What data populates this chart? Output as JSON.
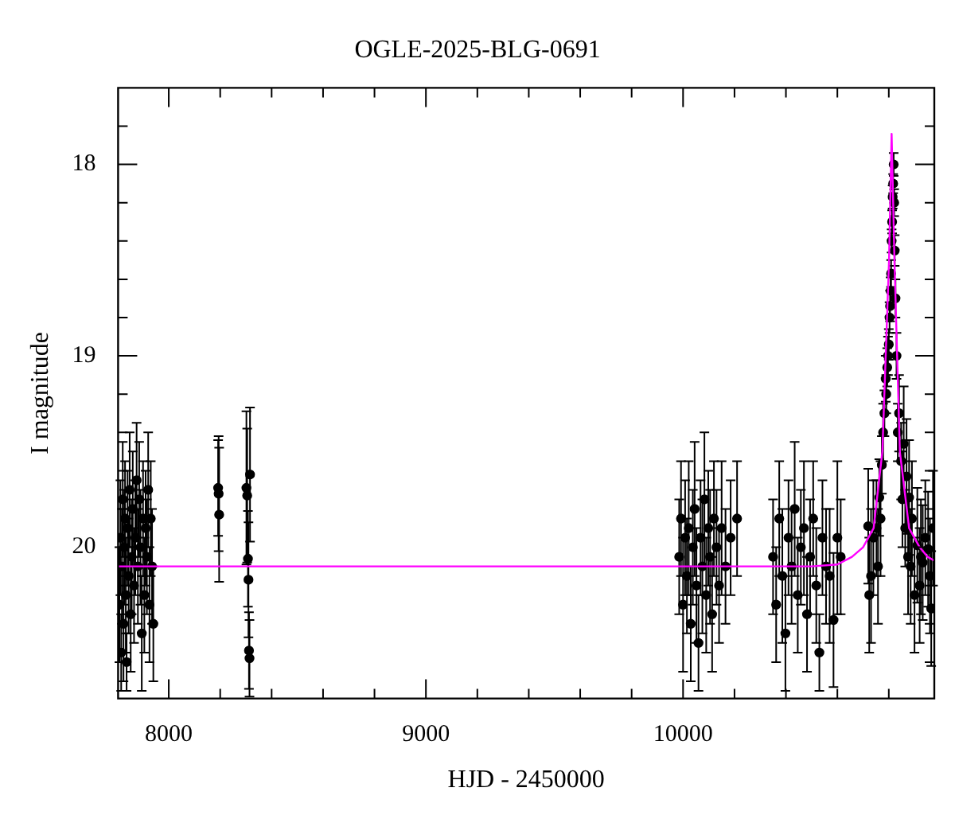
{
  "chart_data": {
    "type": "scatter",
    "title": "OGLE-2025-BLG-0691",
    "xlabel": "HJD - 2450000",
    "ylabel": "I magnitude",
    "xlim": [
      7803,
      10977
    ],
    "ylim": [
      20.79,
      17.6
    ],
    "xticks": [
      8000,
      {
        "value": 8200,
        "label": null
      },
      {
        "value": 8400,
        "label": null
      },
      {
        "value": 8600,
        "label": null
      },
      {
        "value": 8800,
        "label": null
      },
      9000,
      {
        "value": 9200,
        "label": null
      },
      {
        "value": 9400,
        "label": null
      },
      {
        "value": 9600,
        "label": null
      },
      {
        "value": 9800,
        "label": null
      },
      10000,
      {
        "value": 10200,
        "label": null
      },
      {
        "value": 10400,
        "label": null
      },
      {
        "value": 10600,
        "label": null
      },
      {
        "value": 10800,
        "label": null
      }
    ],
    "yticks": [
      {
        "value": 17.8,
        "label": null
      },
      18,
      {
        "value": 18.2,
        "label": null
      },
      {
        "value": 18.4,
        "label": null
      },
      {
        "value": 18.6,
        "label": null
      },
      {
        "value": 18.8,
        "label": null
      },
      19,
      {
        "value": 19.2,
        "label": null
      },
      {
        "value": 19.4,
        "label": null
      },
      {
        "value": 19.6,
        "label": null
      },
      {
        "value": 19.8,
        "label": null
      },
      20,
      {
        "value": 20.2,
        "label": null
      },
      {
        "value": 20.4,
        "label": null
      },
      {
        "value": 20.6,
        "label": null
      }
    ],
    "series": [
      {
        "color": "#000000",
        "marker": "circle",
        "x": [
          7808,
          7812,
          7815,
          7818,
          7821,
          7824,
          7827,
          7830,
          7833,
          7836,
          7840,
          7844,
          7848,
          7852,
          7856,
          7860,
          7865,
          7870,
          7875,
          7880,
          7885,
          7890,
          7895,
          7900,
          7905,
          7910,
          7915,
          7920,
          7925,
          7930,
          7935,
          7940,
          8192,
          8194,
          8196,
          8302,
          8305,
          8308,
          8310,
          8312,
          8314,
          8316,
          9985,
          9992,
          10000,
          10008,
          10015,
          10022,
          10030,
          10038,
          10045,
          10052,
          10060,
          10068,
          10075,
          10083,
          10090,
          10098,
          10105,
          10113,
          10120,
          10130,
          10140,
          10150,
          10165,
          10185,
          10210,
          10350,
          10362,
          10374,
          10386,
          10398,
          10410,
          10422,
          10434,
          10446,
          10458,
          10470,
          10482,
          10494,
          10506,
          10518,
          10530,
          10542,
          10556,
          10570,
          10585,
          10600,
          10613,
          10720,
          10724,
          10731,
          10740,
          10752,
          10758,
          10763,
          10768,
          10773,
          10778,
          10783,
          10788,
          10790,
          10794,
          10797,
          10800,
          10803,
          10805,
          10807,
          10809,
          10811,
          10813,
          10815,
          10817,
          10819,
          10821,
          10823,
          10826,
          10830,
          10835,
          10840,
          10848,
          10853,
          10858,
          10864,
          10869,
          10875,
          10879,
          10885,
          10890,
          10900,
          10911,
          10920,
          10932,
          10942,
          10953,
          10965,
          10972,
          10925,
          10960
        ],
        "values": [
          20.3,
          19.95,
          20.55,
          20.1,
          19.75,
          20.4,
          20.0,
          19.85,
          20.25,
          20.6,
          19.9,
          20.15,
          19.7,
          20.35,
          20.05,
          19.8,
          20.2,
          19.95,
          19.65,
          20.1,
          19.75,
          20.0,
          20.45,
          19.85,
          20.25,
          19.9,
          20.05,
          19.7,
          20.3,
          19.85,
          20.1,
          20.4,
          19.69,
          19.72,
          19.83,
          19.69,
          19.73,
          20.06,
          20.17,
          20.54,
          20.58,
          19.62,
          20.05,
          19.85,
          20.3,
          19.95,
          20.15,
          19.9,
          20.4,
          20.0,
          19.8,
          20.2,
          20.5,
          19.95,
          20.1,
          19.75,
          20.25,
          19.9,
          20.05,
          20.35,
          19.85,
          20.0,
          20.2,
          19.9,
          20.1,
          19.95,
          19.85,
          20.05,
          20.3,
          19.85,
          20.15,
          20.45,
          19.95,
          20.1,
          19.8,
          20.25,
          20.0,
          19.9,
          20.35,
          20.05,
          19.85,
          20.2,
          20.55,
          19.95,
          20.1,
          20.15,
          20.38,
          19.95,
          20.05,
          19.89,
          20.25,
          20.15,
          19.95,
          19.9,
          20.1,
          19.74,
          19.85,
          19.57,
          19.4,
          19.3,
          19.12,
          19.2,
          19.06,
          19.0,
          18.94,
          18.8,
          18.74,
          18.66,
          18.57,
          18.4,
          18.3,
          18.17,
          18.1,
          18.0,
          18.2,
          18.45,
          18.7,
          19.0,
          19.4,
          19.3,
          19.55,
          19.75,
          19.46,
          19.9,
          19.63,
          20.05,
          19.74,
          20.1,
          19.85,
          20.25,
          19.99,
          20.2,
          20.08,
          19.95,
          20.01,
          20.32,
          19.9,
          20.05,
          20.15
        ],
        "errors": [
          0.3,
          0.3,
          0.2,
          0.3,
          0.3,
          0.3,
          0.3,
          0.3,
          0.3,
          0.15,
          0.3,
          0.3,
          0.3,
          0.3,
          0.3,
          0.3,
          0.3,
          0.3,
          0.3,
          0.3,
          0.3,
          0.3,
          0.3,
          0.3,
          0.3,
          0.3,
          0.3,
          0.3,
          0.3,
          0.3,
          0.3,
          0.3,
          0.25,
          0.3,
          0.35,
          0.4,
          0.35,
          0.25,
          0.3,
          0.2,
          0.2,
          0.35,
          0.3,
          0.3,
          0.35,
          0.3,
          0.3,
          0.35,
          0.3,
          0.3,
          0.35,
          0.3,
          0.25,
          0.3,
          0.35,
          0.35,
          0.3,
          0.3,
          0.35,
          0.3,
          0.3,
          0.3,
          0.3,
          0.35,
          0.3,
          0.3,
          0.3,
          0.3,
          0.3,
          0.3,
          0.35,
          0.3,
          0.3,
          0.3,
          0.35,
          0.3,
          0.3,
          0.35,
          0.3,
          0.3,
          0.3,
          0.3,
          0.2,
          0.3,
          0.3,
          0.35,
          0.35,
          0.4,
          0.3,
          0.3,
          0.3,
          0.35,
          0.3,
          0.25,
          0.3,
          0.2,
          0.3,
          0.15,
          0.15,
          0.12,
          0.12,
          0.1,
          0.1,
          0.1,
          0.08,
          0.08,
          0.08,
          0.07,
          0.07,
          0.06,
          0.06,
          0.06,
          0.05,
          0.06,
          0.07,
          0.08,
          0.1,
          0.12,
          0.15,
          0.2,
          0.2,
          0.25,
          0.3,
          0.2,
          0.3,
          0.3,
          0.3,
          0.3,
          0.3,
          0.3,
          0.3,
          0.3,
          0.3,
          0.3,
          0.3,
          0.3,
          0.3,
          0.3,
          0.3
        ]
      },
      {
        "type": "line",
        "color": "#ff00ff",
        "marker": "none",
        "x": [
          7803,
          10500,
          10600,
          10657,
          10700,
          10741,
          10775,
          10801,
          10811,
          10822,
          10843,
          10879,
          10920,
          10951,
          10977
        ],
        "values": [
          20.1,
          20.1,
          20.09,
          20.05,
          20.0,
          19.9,
          19.5,
          18.5,
          17.84,
          18.5,
          19.5,
          19.9,
          20.0,
          20.05,
          20.07
        ]
      }
    ]
  }
}
